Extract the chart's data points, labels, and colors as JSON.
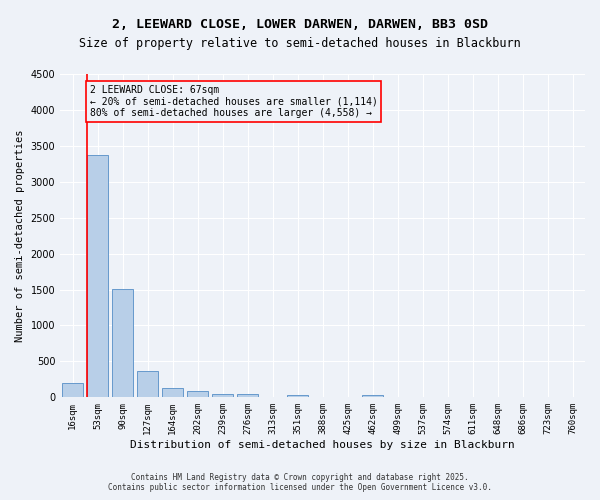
{
  "title1": "2, LEEWARD CLOSE, LOWER DARWEN, DARWEN, BB3 0SD",
  "title2": "Size of property relative to semi-detached houses in Blackburn",
  "xlabel": "Distribution of semi-detached houses by size in Blackburn",
  "ylabel": "Number of semi-detached properties",
  "categories": [
    "16sqm",
    "53sqm",
    "90sqm",
    "127sqm",
    "164sqm",
    "202sqm",
    "239sqm",
    "276sqm",
    "313sqm",
    "351sqm",
    "388sqm",
    "425sqm",
    "462sqm",
    "499sqm",
    "537sqm",
    "574sqm",
    "611sqm",
    "648sqm",
    "686sqm",
    "723sqm",
    "760sqm"
  ],
  "values": [
    200,
    3370,
    1510,
    370,
    130,
    85,
    50,
    40,
    0,
    30,
    0,
    0,
    30,
    0,
    0,
    0,
    0,
    0,
    0,
    0,
    0
  ],
  "bar_color": "#b8cfe8",
  "bar_edge_color": "#6699cc",
  "marker_color": "red",
  "annotation_title": "2 LEEWARD CLOSE: 67sqm",
  "annotation_line1": "← 20% of semi-detached houses are smaller (1,114)",
  "annotation_line2": "80% of semi-detached houses are larger (4,558) →",
  "footer1": "Contains HM Land Registry data © Crown copyright and database right 2025.",
  "footer2": "Contains public sector information licensed under the Open Government Licence v3.0.",
  "ylim": [
    0,
    4500
  ],
  "yticks": [
    0,
    500,
    1000,
    1500,
    2000,
    2500,
    3000,
    3500,
    4000,
    4500
  ],
  "bg_color": "#eef2f8",
  "grid_color": "#ffffff",
  "title_fontsize": 9.5,
  "subtitle_fontsize": 8.5,
  "xlabel_fontsize": 8,
  "ylabel_fontsize": 7.5,
  "tick_fontsize": 6.5,
  "annotation_fontsize": 7,
  "footer_fontsize": 5.5
}
